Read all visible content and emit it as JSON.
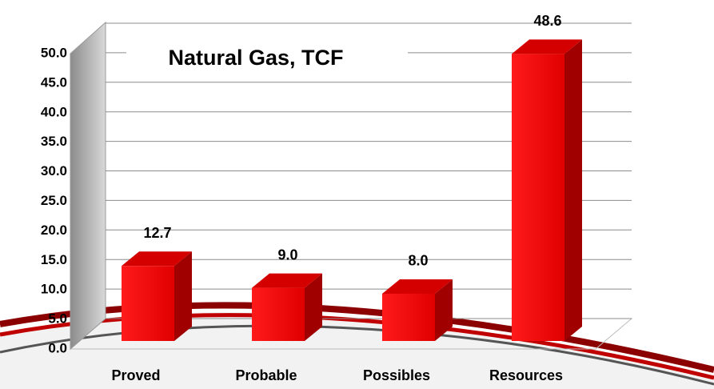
{
  "chart_data": {
    "type": "bar3d",
    "title": "Natural Gas, TCF",
    "categories": [
      "Proved",
      "Probable",
      "Possibles",
      "Resources"
    ],
    "values": [
      12.7,
      9.0,
      8.0,
      48.6
    ],
    "value_labels": [
      "12.7",
      "9.0",
      "8.0",
      "48.6"
    ],
    "color": "#ff0000",
    "ylim": [
      0,
      50
    ],
    "yticks": [
      {
        "value": 0,
        "label": "0.0"
      },
      {
        "value": 5,
        "label": "5.0"
      },
      {
        "value": 10,
        "label": "10.0"
      },
      {
        "value": 15,
        "label": "15.0"
      },
      {
        "value": 20,
        "label": "20.0"
      },
      {
        "value": 25,
        "label": "25.0"
      },
      {
        "value": 30,
        "label": "30.0"
      },
      {
        "value": 35,
        "label": "35.0"
      },
      {
        "value": 40,
        "label": "40.0"
      },
      {
        "value": 45,
        "label": "45.0"
      },
      {
        "value": 50,
        "label": "50.0"
      }
    ],
    "grid": true
  }
}
